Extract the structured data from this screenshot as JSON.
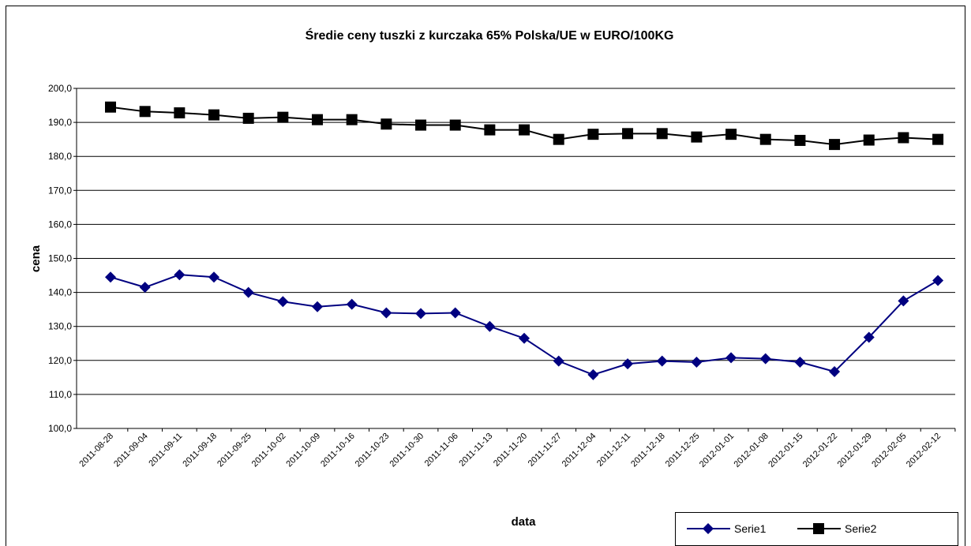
{
  "chart_data": {
    "type": "line",
    "title": "Średie ceny tuszki z kurczaka 65% Polska/UE w EURO/100KG",
    "x_label": "data",
    "y_label": "cena",
    "categories": [
      "2011-08-28",
      "2011-09-04",
      "2011-09-11",
      "2011-09-18",
      "2011-09-25",
      "2011-10-02",
      "2011-10-09",
      "2011-10-16",
      "2011-10-23",
      "2011-10-30",
      "2011-11-06",
      "2011-11-13",
      "2011-11-20",
      "2011-11-27",
      "2011-12-04",
      "2011-12-11",
      "2011-12-18",
      "2011-12-25",
      "2012-01-01",
      "2012-01-08",
      "2012-01-15",
      "2012-01-22",
      "2012-01-29",
      "2012-02-05",
      "2012-02-12"
    ],
    "series": [
      {
        "name": "Serie1",
        "color": "#000080",
        "marker": "diamond",
        "values": [
          144.5,
          141.5,
          145.2,
          144.5,
          140.0,
          137.3,
          135.8,
          136.5,
          134.0,
          133.8,
          134.0,
          130.0,
          126.5,
          119.8,
          115.8,
          119.0,
          119.8,
          119.5,
          120.8,
          120.5,
          119.5,
          116.7,
          126.8,
          137.5,
          143.5
        ]
      },
      {
        "name": "Serie2",
        "color": "#000000",
        "marker": "square",
        "values": [
          194.5,
          193.2,
          192.8,
          192.2,
          191.2,
          191.5,
          190.8,
          190.8,
          189.5,
          189.2,
          189.2,
          187.8,
          187.8,
          185.0,
          186.5,
          186.7,
          186.7,
          185.7,
          186.5,
          185.0,
          184.7,
          183.5,
          184.8,
          185.5,
          185.0
        ]
      }
    ],
    "ylim": [
      100,
      200
    ],
    "yticks": [
      {
        "value": 100,
        "label": "100,0"
      },
      {
        "value": 110,
        "label": "110,0"
      },
      {
        "value": 120,
        "label": "120,0"
      },
      {
        "value": 130,
        "label": "130,0"
      },
      {
        "value": 140,
        "label": "140,0"
      },
      {
        "value": 150,
        "label": "150,0"
      },
      {
        "value": 160,
        "label": "160,0"
      },
      {
        "value": 170,
        "label": "170,0"
      },
      {
        "value": 180,
        "label": "180,0"
      },
      {
        "value": 190,
        "label": "190,0"
      },
      {
        "value": 200,
        "label": "200,0"
      }
    ],
    "grid": true,
    "legend": "bottom-right"
  }
}
